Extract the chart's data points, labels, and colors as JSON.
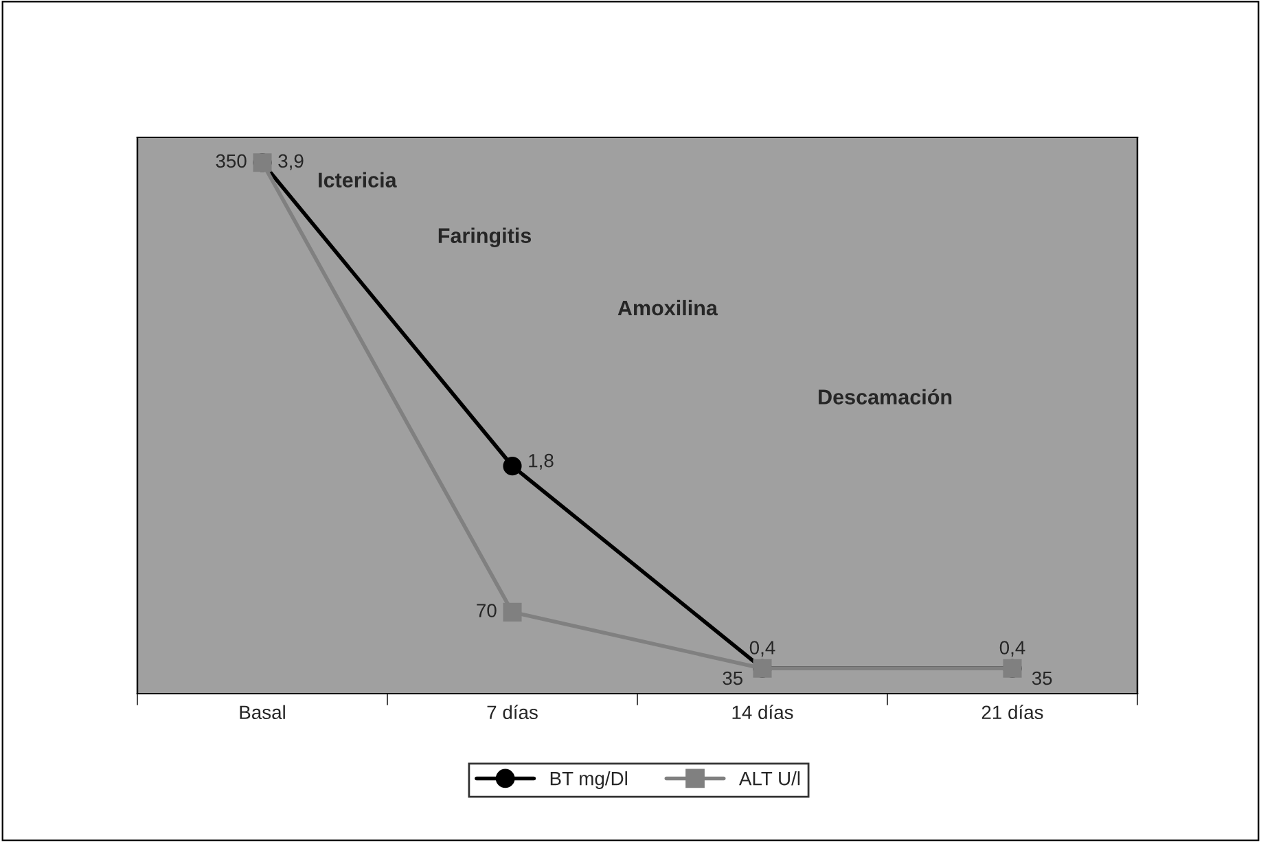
{
  "chart_data": {
    "type": "line",
    "categories": [
      "Basal",
      "7 días",
      "14 días",
      "21 días"
    ],
    "series": [
      {
        "name": "BT mg/Dl",
        "color": "#000000",
        "marker": "circle",
        "values": [
          3.9,
          1.8,
          0.4,
          0.4
        ],
        "value_labels": [
          "3,9",
          "1,8",
          "0,4",
          "0,4"
        ]
      },
      {
        "name": "ALT U/l",
        "color": "#808080",
        "marker": "square",
        "axis": "y2",
        "values": [
          350,
          70,
          35,
          35
        ],
        "value_labels": [
          "350",
          "70",
          "35",
          "35"
        ]
      }
    ],
    "tick_labels": "x",
    "legend": "bottom",
    "grid": false,
    "annotations": [
      "Ictericia",
      "Faringitis",
      "Amoxilina",
      "Descamación"
    ]
  }
}
